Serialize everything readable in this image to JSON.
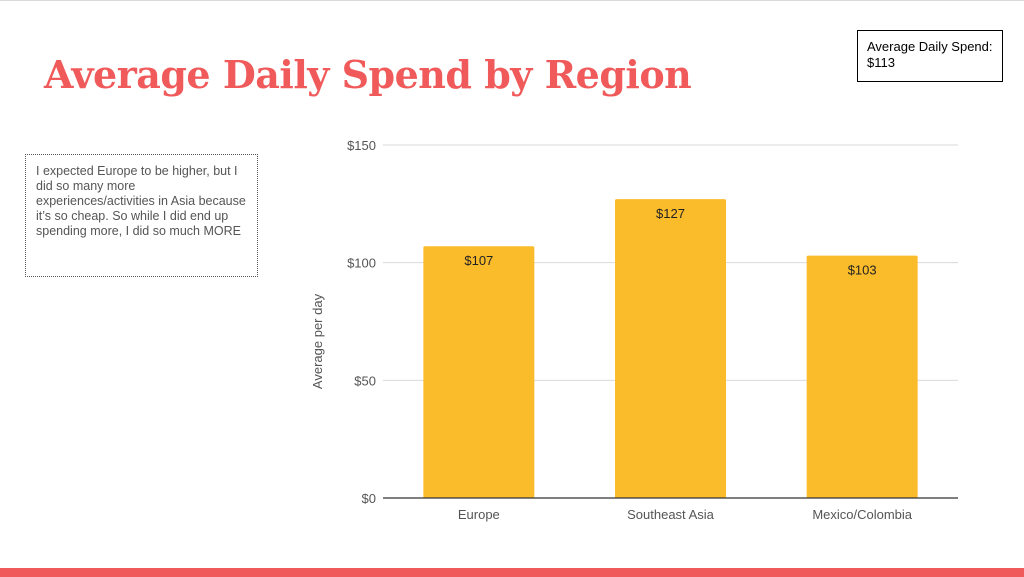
{
  "slide": {
    "title": "Average Daily Spend by Region",
    "summary": {
      "label": "Average Daily Spend:",
      "value": "$113"
    },
    "note": "I expected Europe to be higher, but I did so many more experiences/activities in Asia because it’s so cheap. So while I did end up spending more, I did so much MORE"
  },
  "colors": {
    "accent": "#f05a5a",
    "bar": "#fbbc2c",
    "grid": "#d9d9d9",
    "axis_text": "#555555"
  },
  "chart_data": {
    "type": "bar",
    "categories": [
      "Europe",
      "Southeast Asia",
      "Mexico/Colombia"
    ],
    "values": [
      107,
      127,
      103
    ],
    "data_labels": [
      "$107",
      "$127",
      "$103"
    ],
    "title": "",
    "xlabel": "",
    "ylabel": "Average per day",
    "ylim": [
      0,
      150
    ],
    "yticks": [
      0,
      50,
      100,
      150
    ],
    "ytick_labels": [
      "$0",
      "$50",
      "$100",
      "$150"
    ],
    "grid": true,
    "legend": "none"
  }
}
